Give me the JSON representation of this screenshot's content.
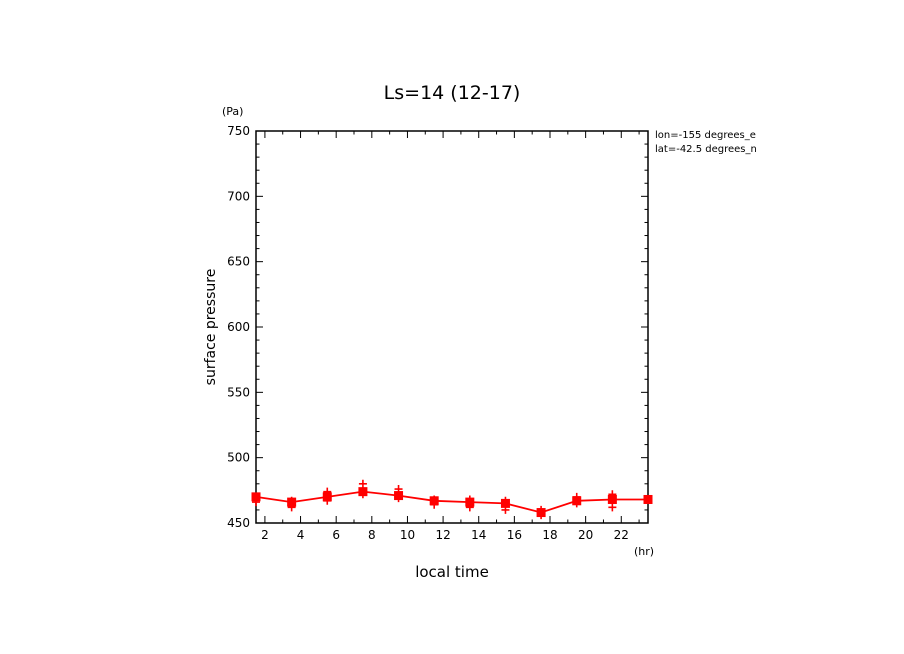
{
  "chart_data": {
    "type": "line",
    "title": "Ls=14 (12-17)",
    "xlabel": "local time",
    "ylabel": "surface pressure",
    "x_unit": "(hr)",
    "y_unit": "(Pa)",
    "xlim": [
      1.5,
      23.5
    ],
    "ylim": [
      450,
      750
    ],
    "x_ticks": [
      2,
      4,
      6,
      8,
      10,
      12,
      14,
      16,
      18,
      20,
      22
    ],
    "y_ticks": [
      450,
      500,
      550,
      600,
      650,
      700,
      750
    ],
    "annotations": [
      "lon=-155 degrees_e",
      "lat=-42.5 degrees_n"
    ],
    "colors": {
      "series": "#ff0000",
      "axes": "#000000"
    },
    "grid": false,
    "series": [
      {
        "marker": "square",
        "x": [
          1.5,
          3.5,
          5.5,
          7.5,
          9.5,
          11.5,
          13.5,
          15.5,
          17.5,
          19.5,
          21.5,
          23.5
        ],
        "values": [
          470,
          466,
          470,
          474,
          471,
          467,
          466,
          465,
          458,
          467,
          468,
          468
        ]
      },
      {
        "marker": "plus",
        "x": [
          1.5,
          1.5,
          3.5,
          3.5,
          5.5,
          5.5,
          7.5,
          7.5,
          9.5,
          9.5,
          11.5,
          11.5,
          13.5,
          13.5,
          15.5,
          15.5,
          17.5,
          17.5,
          19.5,
          19.5,
          21.5,
          21.5
        ],
        "values": [
          470,
          466,
          467,
          462,
          474,
          467,
          480,
          472,
          476,
          469,
          468,
          464,
          468,
          462,
          467,
          460,
          460,
          456,
          470,
          465,
          472,
          462
        ]
      }
    ]
  }
}
